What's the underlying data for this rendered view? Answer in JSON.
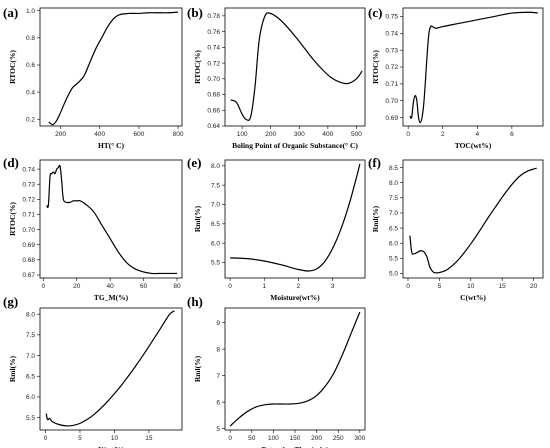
{
  "chart_data": [
    {
      "type": "line",
      "letter": "(a)",
      "xlabel": "HT(° C)",
      "ylabel": "RTOC(%)",
      "xlim": [
        95,
        820
      ],
      "ylim": [
        0.15,
        1.02
      ],
      "xticks": [
        200,
        400,
        600,
        800
      ],
      "yticks": [
        0.2,
        0.4,
        0.6,
        0.8,
        1.0
      ],
      "xtick_labels": [
        "200",
        "400",
        "600",
        "800"
      ],
      "ytick_labels": [
        "0.2",
        "0.4",
        "0.6",
        "0.8",
        "1.0"
      ],
      "x": [
        140,
        160,
        180,
        200,
        230,
        260,
        290,
        320,
        350,
        380,
        410,
        440,
        470,
        500,
        550,
        600,
        650,
        700,
        750,
        800
      ],
      "y": [
        0.18,
        0.16,
        0.19,
        0.25,
        0.35,
        0.43,
        0.47,
        0.52,
        0.62,
        0.72,
        0.8,
        0.88,
        0.94,
        0.97,
        0.98,
        0.98,
        0.985,
        0.985,
        0.985,
        0.99
      ]
    },
    {
      "type": "line",
      "letter": "(b)",
      "xlabel": "Boling Point of Organic Substance(° C)",
      "ylabel": "RTOC(%)",
      "xlim": [
        40,
        530
      ],
      "ylim": [
        0.64,
        0.79
      ],
      "xticks": [
        100,
        200,
        300,
        400,
        500
      ],
      "yticks": [
        0.64,
        0.66,
        0.68,
        0.7,
        0.72,
        0.74,
        0.76,
        0.78
      ],
      "xtick_labels": [
        "100",
        "200",
        "300",
        "400",
        "500"
      ],
      "ytick_labels": [
        "0.64",
        "0.66",
        "0.68",
        "0.70",
        "0.72",
        "0.74",
        "0.76",
        "0.78"
      ],
      "x": [
        60,
        80,
        100,
        115,
        130,
        145,
        160,
        180,
        200,
        230,
        260,
        290,
        320,
        350,
        380,
        410,
        440,
        470,
        500,
        520
      ],
      "y": [
        0.673,
        0.67,
        0.655,
        0.648,
        0.652,
        0.69,
        0.75,
        0.78,
        0.783,
        0.776,
        0.765,
        0.752,
        0.738,
        0.724,
        0.712,
        0.702,
        0.696,
        0.694,
        0.7,
        0.71
      ]
    },
    {
      "type": "line",
      "letter": "(c)",
      "xlabel": "TOC(wt%)",
      "ylabel": "RTOC(%)",
      "xlim": [
        -0.3,
        7.8
      ],
      "ylim": [
        0.685,
        0.755
      ],
      "xticks": [
        0,
        2,
        4,
        6
      ],
      "yticks": [
        0.69,
        0.7,
        0.71,
        0.72,
        0.73,
        0.74,
        0.75
      ],
      "xtick_labels": [
        "0",
        "2",
        "4",
        "6"
      ],
      "ytick_labels": [
        "0.69",
        "0.70",
        "0.71",
        "0.72",
        "0.73",
        "0.74",
        "0.75"
      ],
      "x": [
        0.1,
        0.2,
        0.3,
        0.4,
        0.5,
        0.6,
        0.7,
        0.8,
        0.9,
        1.0,
        1.1,
        1.2,
        1.3,
        1.4,
        1.6,
        2.0,
        3.0,
        4.0,
        5.0,
        6.0,
        7.0,
        7.5
      ],
      "y": [
        0.691,
        0.69,
        0.699,
        0.703,
        0.7,
        0.69,
        0.687,
        0.69,
        0.698,
        0.712,
        0.728,
        0.74,
        0.744,
        0.744,
        0.743,
        0.744,
        0.746,
        0.748,
        0.75,
        0.752,
        0.7525,
        0.752
      ]
    },
    {
      "type": "line",
      "letter": "(d)",
      "xlabel": "TG_M(%)",
      "ylabel": "RTOC(%)",
      "xlim": [
        -2,
        83
      ],
      "ylim": [
        0.668,
        0.746
      ],
      "xticks": [
        0,
        20,
        40,
        60,
        80
      ],
      "yticks": [
        0.67,
        0.68,
        0.69,
        0.7,
        0.71,
        0.72,
        0.73,
        0.74
      ],
      "xtick_labels": [
        "0",
        "20",
        "40",
        "60",
        "80"
      ],
      "ytick_labels": [
        "0.67",
        "0.68",
        "0.69",
        "0.70",
        "0.71",
        "0.72",
        "0.73",
        "0.74"
      ],
      "x": [
        2,
        3,
        4,
        5,
        6,
        7,
        8,
        9,
        10,
        11,
        12,
        14,
        16,
        18,
        20,
        22,
        25,
        30,
        35,
        40,
        45,
        50,
        55,
        60,
        65,
        70,
        75,
        80
      ],
      "y": [
        0.716,
        0.716,
        0.735,
        0.737,
        0.738,
        0.737,
        0.74,
        0.741,
        0.742,
        0.732,
        0.72,
        0.718,
        0.718,
        0.719,
        0.719,
        0.719,
        0.717,
        0.712,
        0.703,
        0.694,
        0.685,
        0.678,
        0.674,
        0.672,
        0.671,
        0.671,
        0.671,
        0.671
      ]
    },
    {
      "type": "line",
      "letter": "(e)",
      "xlabel": "Moisture(wt%)",
      "ylabel": "Rml(%)",
      "xlim": [
        -0.15,
        3.95
      ],
      "ylim": [
        5.1,
        8.15
      ],
      "xticks": [
        0,
        1,
        2,
        3
      ],
      "yticks": [
        5.5,
        6.0,
        6.5,
        7.0,
        7.5,
        8.0
      ],
      "xtick_labels": [
        "0",
        "1",
        "2",
        "3"
      ],
      "ytick_labels": [
        "5.5",
        "6.0",
        "6.5",
        "7.0",
        "7.5",
        "8.0"
      ],
      "x": [
        0,
        0.5,
        1.0,
        1.5,
        2.0,
        2.3,
        2.5,
        2.7,
        2.9,
        3.1,
        3.3,
        3.5,
        3.7,
        3.8
      ],
      "y": [
        5.62,
        5.6,
        5.54,
        5.44,
        5.32,
        5.28,
        5.32,
        5.45,
        5.7,
        6.05,
        6.5,
        7.05,
        7.7,
        8.05
      ]
    },
    {
      "type": "line",
      "letter": "(f)",
      "xlabel": "C(wt%)",
      "ylabel": "Rml(%)",
      "xlim": [
        -0.8,
        21.5
      ],
      "ylim": [
        4.85,
        8.75
      ],
      "xticks": [
        0,
        5,
        10,
        15,
        20
      ],
      "yticks": [
        5.0,
        5.5,
        6.0,
        6.5,
        7.0,
        7.5,
        8.0,
        8.5
      ],
      "xtick_labels": [
        "0",
        "5",
        "10",
        "15",
        "20"
      ],
      "ytick_labels": [
        "5.0",
        "5.5",
        "6.0",
        "6.5",
        "7.0",
        "7.5",
        "8.0",
        "8.5"
      ],
      "x": [
        0.3,
        0.6,
        1.0,
        1.5,
        2.0,
        2.5,
        3.0,
        3.5,
        4.0,
        4.5,
        5.0,
        6.0,
        7.0,
        8.0,
        9.0,
        10.0,
        11.0,
        12.0,
        13.0,
        14.0,
        15.0,
        16.0,
        17.0,
        18.0,
        19.0,
        20.0,
        20.5
      ],
      "y": [
        6.25,
        5.7,
        5.65,
        5.7,
        5.75,
        5.72,
        5.55,
        5.2,
        5.05,
        5.02,
        5.03,
        5.1,
        5.25,
        5.45,
        5.7,
        5.98,
        6.28,
        6.6,
        6.92,
        7.22,
        7.52,
        7.8,
        8.05,
        8.25,
        8.38,
        8.45,
        8.48
      ]
    },
    {
      "type": "line",
      "letter": "(g)",
      "xlabel": "N(wt%)",
      "ylabel": "Rml(%)",
      "xlim": [
        -0.8,
        19.8
      ],
      "ylim": [
        5.2,
        8.15
      ],
      "xticks": [
        0,
        5,
        10,
        15
      ],
      "yticks": [
        5.5,
        6.0,
        6.5,
        7.0,
        7.5,
        8.0
      ],
      "xtick_labels": [
        "0",
        "5",
        "10",
        "15"
      ],
      "ytick_labels": [
        "5.5",
        "6.0",
        "6.5",
        "7.0",
        "7.5",
        "8.0"
      ],
      "x": [
        0.1,
        0.3,
        0.6,
        1.0,
        2.0,
        3.0,
        4.0,
        5.0,
        6.0,
        7.0,
        8.0,
        9.0,
        10.0,
        11.0,
        12.0,
        13.0,
        14.0,
        15.0,
        16.0,
        17.0,
        18.0,
        18.7
      ],
      "y": [
        5.6,
        5.45,
        5.48,
        5.4,
        5.33,
        5.3,
        5.31,
        5.36,
        5.45,
        5.57,
        5.72,
        5.89,
        6.08,
        6.28,
        6.5,
        6.73,
        6.97,
        7.22,
        7.48,
        7.74,
        8.0,
        8.08
      ]
    },
    {
      "type": "line",
      "letter": "(h)",
      "xlabel": "Retention Time(min)",
      "ylabel": "Rml(%)",
      "xlim": [
        -12,
        312
      ],
      "ylim": [
        4.95,
        9.55
      ],
      "xticks": [
        0,
        50,
        100,
        150,
        200,
        250,
        300
      ],
      "yticks": [
        5,
        6,
        7,
        8,
        9
      ],
      "xtick_labels": [
        "0",
        "50",
        "100",
        "150",
        "200",
        "250",
        "300"
      ],
      "ytick_labels": [
        "5",
        "6",
        "7",
        "8",
        "9"
      ],
      "x": [
        0,
        20,
        40,
        60,
        80,
        100,
        120,
        140,
        160,
        180,
        200,
        220,
        240,
        260,
        280,
        300
      ],
      "y": [
        5.1,
        5.4,
        5.65,
        5.82,
        5.9,
        5.93,
        5.93,
        5.93,
        5.96,
        6.05,
        6.25,
        6.6,
        7.1,
        7.8,
        8.6,
        9.4
      ]
    }
  ]
}
